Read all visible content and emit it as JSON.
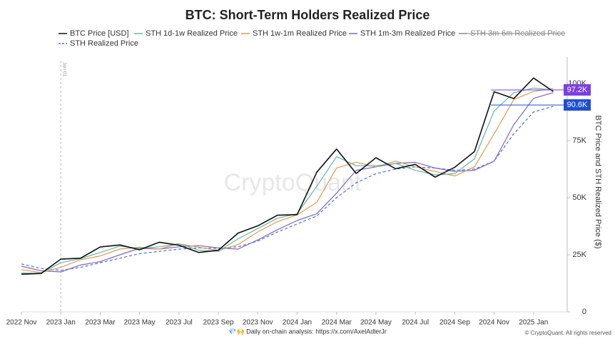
{
  "chart_data": {
    "type": "line",
    "title": "BTC: Short-Term Holders Realized Price",
    "y_label": "BTC Price and STH Realized Price ($)",
    "watermark": "CryptoQuant",
    "footer": "💎🙌 Daily on-chain analysis: https://x.com/AxelAdlerJr",
    "copyright": "© CryptoQuant. All rights reserved",
    "x": [
      "2022-11",
      "2022-12",
      "2023-01",
      "2023-02",
      "2023-03",
      "2023-04",
      "2023-05",
      "2023-06",
      "2023-07",
      "2023-08",
      "2023-09",
      "2023-10",
      "2023-11",
      "2023-12",
      "2024-01",
      "2024-02",
      "2024-03",
      "2024-04",
      "2024-05",
      "2024-06",
      "2024-07",
      "2024-08",
      "2024-09",
      "2024-10",
      "2024-11",
      "2024-12",
      "2025-01",
      "2025-02"
    ],
    "xlim": [
      "2022-11",
      "2025-03"
    ],
    "xticks": [
      {
        "value": "2022-11",
        "label": "2022 Nov"
      },
      {
        "value": "2023-01",
        "label": "2023 Jan"
      },
      {
        "value": "2023-03",
        "label": "2023 Mar"
      },
      {
        "value": "2023-05",
        "label": "2023 May"
      },
      {
        "value": "2023-07",
        "label": "2023 Jul"
      },
      {
        "value": "2023-09",
        "label": "2023 Sep"
      },
      {
        "value": "2023-11",
        "label": "2023 Nov"
      },
      {
        "value": "2024-01",
        "label": "2024 Jan"
      },
      {
        "value": "2024-03",
        "label": "2024 Mar"
      },
      {
        "value": "2024-05",
        "label": "2024 May"
      },
      {
        "value": "2024-07",
        "label": "2024 Jul"
      },
      {
        "value": "2024-09",
        "label": "2024 Sep"
      },
      {
        "value": "2024-11",
        "label": "2024 Nov"
      },
      {
        "value": "2025-01",
        "label": "2025 Jan"
      }
    ],
    "ylim": [
      0,
      110000
    ],
    "yticks": [
      0,
      {
        "value": 25000,
        "label": "25K"
      },
      {
        "value": 50000,
        "label": "50K"
      },
      {
        "value": 75000,
        "label": "75K"
      },
      {
        "value": 100000,
        "label": "100K"
      }
    ],
    "series": [
      {
        "name": "BTC Price [USD]",
        "color": "#111111",
        "values": [
          16500,
          16800,
          23100,
          23500,
          28400,
          29300,
          27200,
          30500,
          29200,
          26000,
          27000,
          34500,
          37700,
          42300,
          42600,
          61200,
          71300,
          60600,
          67500,
          62700,
          64600,
          59000,
          63300,
          70200,
          96400,
          93400,
          102400,
          96500
        ]
      },
      {
        "name": "STH 1d-1w Realized Price",
        "color": "#5fb8b0",
        "values": [
          17000,
          16900,
          21500,
          23300,
          26000,
          28800,
          27800,
          28500,
          29800,
          27000,
          26500,
          32000,
          36500,
          41000,
          43000,
          55000,
          68000,
          64000,
          64000,
          65000,
          62000,
          60000,
          60500,
          67000,
          88000,
          96000,
          98000,
          97200
        ]
      },
      {
        "name": "STH 1w-1m Realized Price",
        "color": "#e39a4b",
        "values": [
          18500,
          17200,
          19500,
          22800,
          24500,
          27500,
          28300,
          27500,
          29800,
          28300,
          26800,
          29500,
          35000,
          39500,
          42500,
          48000,
          63000,
          65500,
          63500,
          66000,
          63500,
          61500,
          59500,
          63500,
          78000,
          93000,
          96500,
          97800
        ]
      },
      {
        "name": "STH 1m-3m Realized Price",
        "color": "#7a67c9",
        "values": [
          20000,
          18000,
          17500,
          20500,
          22000,
          25000,
          27800,
          27500,
          28500,
          29000,
          28000,
          27500,
          31500,
          36000,
          40000,
          43000,
          52000,
          62000,
          63500,
          65000,
          65500,
          63000,
          61500,
          62000,
          66000,
          82000,
          93500,
          96000
        ]
      },
      {
        "name": "STH 3m-6m Realized Price",
        "color": "#888888",
        "visible": false
      },
      {
        "name": "STH Realized Price",
        "color": "#4a6fd6",
        "dashed": true,
        "values": [
          21000,
          19000,
          18200,
          19500,
          21500,
          23500,
          25500,
          26500,
          27500,
          28000,
          27800,
          28500,
          31000,
          35000,
          38500,
          42000,
          50000,
          56500,
          60500,
          62500,
          63500,
          63000,
          62000,
          62500,
          66000,
          78000,
          87500,
          90000
        ]
      }
    ],
    "price_lines": [
      {
        "value": 97200,
        "label": "97.2K",
        "color": "#7b3fe4"
      },
      {
        "value": 90600,
        "label": "90.6K",
        "color": "#1f4fd1"
      }
    ],
    "vlines": [
      {
        "x": "2023-01",
        "label": "Jan 01"
      }
    ]
  }
}
